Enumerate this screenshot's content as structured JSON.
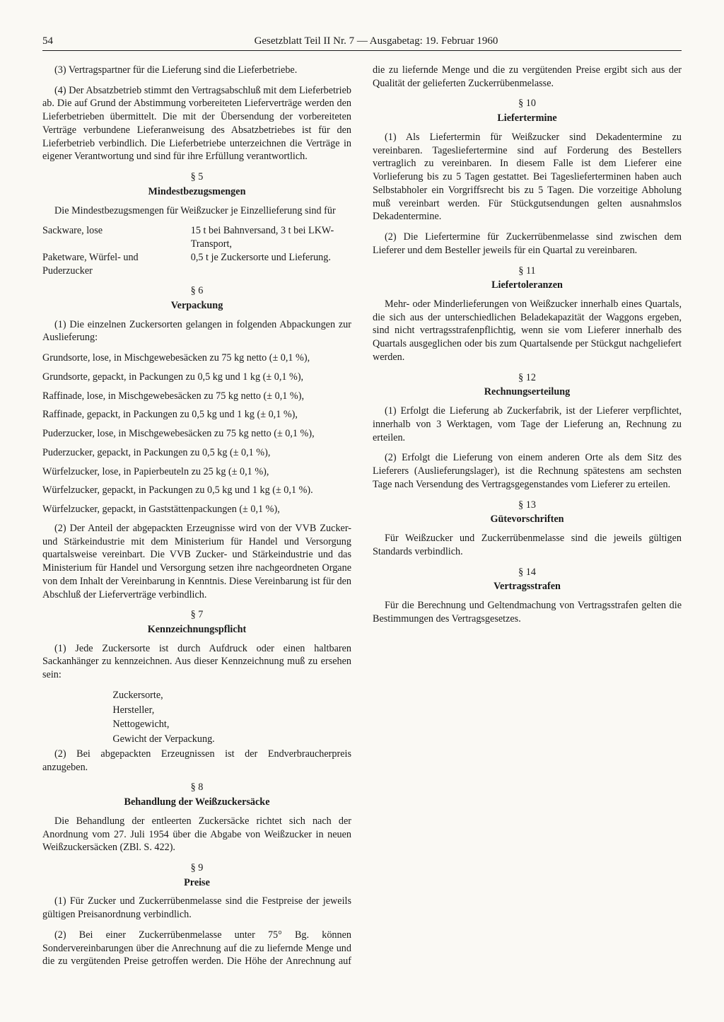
{
  "page_number": "54",
  "header": "Gesetzblatt Teil II Nr. 7 — Ausgabetag: 19. Februar 1960",
  "left": {
    "p3": "(3) Vertragspartner für die Lieferung sind die Lieferbetriebe.",
    "p4": "(4) Der Absatzbetrieb stimmt den Vertragsabschluß mit dem Lieferbetrieb ab. Die auf Grund der Abstimmung vorbereiteten Lieferverträge werden den Lieferbetrieben übermittelt. Die mit der Übersendung der vorbereiteten Verträge verbundene Lieferanweisung des Absatzbetriebes ist für den Lieferbetrieb verbindlich. Die Lieferbetriebe unterzeichnen die Verträge in eigener Verantwortung und sind für ihre Erfüllung verantwortlich.",
    "s5_num": "§ 5",
    "s5_title": "Mindestbezugsmengen",
    "s5_intro": "Die Mindestbezugsmengen für Weißzucker je Einzellieferung sind für",
    "s5_row1_l": "Sackware, lose",
    "s5_row1_r": "15 t bei Bahnversand, 3 t bei LKW-Transport,",
    "s5_row2_l": "Paketware, Würfel- und Puderzucker",
    "s5_row2_r": "0,5 t je Zuckersorte und Lieferung.",
    "s6_num": "§ 6",
    "s6_title": "Verpackung",
    "s6_p1": "(1) Die einzelnen Zuckersorten gelangen in folgenden Abpackungen zur Auslieferung:",
    "s6_li1": "Grundsorte, lose, in Mischgewebesäcken zu 75 kg netto (± 0,1 %),",
    "s6_li2": "Grundsorte, gepackt, in Packungen zu 0,5 kg und 1 kg (± 0,1 %),",
    "s6_li3": "Raffinade, lose, in Mischgewebesäcken zu 75 kg netto (± 0,1 %),",
    "s6_li4": "Raffinade, gepackt, in Packungen zu 0,5 kg und 1 kg (± 0,1 %),",
    "s6_li5": "Puderzucker, lose, in Mischgewebesäcken zu 75 kg netto (± 0,1 %),",
    "s6_li6": "Puderzucker, gepackt, in Packungen zu 0,5 kg (± 0,1 %),",
    "s6_li7": "Würfelzucker, lose, in Papierbeuteln zu 25 kg (± 0,1 %),",
    "s6_li8": "Würfelzucker, gepackt, in Packungen zu 0,5 kg und 1 kg (± 0,1 %).",
    "s6_li9": "Würfelzucker, gepackt, in Gaststättenpackungen (± 0,1 %),",
    "s6_p2": "(2) Der Anteil der abgepackten Erzeugnisse wird von der VVB Zucker- und Stärkeindustrie mit dem Ministerium für Handel und Versorgung quartalsweise vereinbart. Die VVB Zucker- und Stärkeindustrie und das Ministerium für Handel und Versorgung setzen ihre nachgeordneten Organe von dem Inhalt der Vereinbarung in Kenntnis. Diese Vereinbarung ist für den Abschluß der Lieferverträge verbindlich.",
    "s7_num": "§ 7",
    "s7_title": "Kennzeichnungspflicht",
    "s7_p1": "(1) Jede Zuckersorte ist durch Aufdruck oder einen haltbaren Sackanhänger zu kennzeichnen. Aus dieser Kennzeichnung muß zu ersehen sein:",
    "s7_sub1": "Zuckersorte,",
    "s7_sub2": "Hersteller,",
    "s7_sub3": "Nettogewicht,",
    "s7_sub4": "Gewicht der Verpackung."
  },
  "right": {
    "s7_p2": "(2) Bei abgepackten Erzeugnissen ist der Endverbraucherpreis anzugeben.",
    "s8_num": "§ 8",
    "s8_title": "Behandlung der Weißzuckersäcke",
    "s8_p": "Die Behandlung der entleerten Zuckersäcke richtet sich nach der Anordnung vom 27. Juli 1954 über die Abgabe von Weißzucker in neuen Weißzuckersäcken (ZBl. S. 422).",
    "s9_num": "§ 9",
    "s9_title": "Preise",
    "s9_p1": "(1) Für Zucker und Zuckerrübenmelasse sind die Festpreise der jeweils gültigen Preisanordnung verbindlich.",
    "s9_p2": "(2) Bei einer Zuckerrübenmelasse unter 75° Bg. können Sondervereinbarungen über die Anrechnung auf die zu liefernde Menge und die zu vergütenden Preise getroffen werden. Die Höhe der Anrechnung auf die zu liefernde Menge und die zu vergütenden Preise ergibt sich aus der Qualität der gelieferten Zuckerrübenmelasse.",
    "s10_num": "§ 10",
    "s10_title": "Liefertermine",
    "s10_p1": "(1) Als Liefertermin für Weißzucker sind Dekadentermine zu vereinbaren. Tagesliefertermine sind auf Forderung des Bestellers vertraglich zu vereinbaren. In diesem Falle ist dem Lieferer eine Vorlieferung bis zu 5 Tagen gestattet. Bei Tageslieferterminen haben auch Selbstabholer ein Vorgriffsrecht bis zu 5 Tagen. Die vorzeitige Abholung muß vereinbart werden. Für Stückgutsendungen gelten ausnahmslos Dekadentermine.",
    "s10_p2": "(2) Die Liefertermine für Zuckerrübenmelasse sind zwischen dem Lieferer und dem Besteller jeweils für ein Quartal zu vereinbaren.",
    "s11_num": "§ 11",
    "s11_title": "Liefertoleranzen",
    "s11_p": "Mehr- oder Minderlieferungen von Weißzucker innerhalb eines Quartals, die sich aus der unterschiedlichen Beladekapazität der Waggons ergeben, sind nicht vertragsstrafenpflichtig, wenn sie vom Lieferer innerhalb des Quartals ausgeglichen oder bis zum Quartalsende per Stückgut nachgeliefert werden.",
    "s12_num": "§ 12",
    "s12_title": "Rechnungserteilung",
    "s12_p1": "(1) Erfolgt die Lieferung ab Zuckerfabrik, ist der Lieferer verpflichtet, innerhalb von 3 Werktagen, vom Tage der Lieferung an, Rechnung zu erteilen.",
    "s12_p2": "(2) Erfolgt die Lieferung von einem anderen Orte als dem Sitz des Lieferers (Auslieferungslager), ist die Rechnung spätestens am sechsten Tage nach Versendung des Vertragsgegenstandes vom Lieferer zu erteilen.",
    "s13_num": "§ 13",
    "s13_title": "Gütevorschriften",
    "s13_p": "Für Weißzucker und Zuckerrübenmelasse sind die jeweils gültigen Standards verbindlich.",
    "s14_num": "§ 14",
    "s14_title": "Vertragsstrafen",
    "s14_p": "Für die Berechnung und Geltendmachung von Vertragsstrafen gelten die Bestimmungen des Vertragsgesetzes."
  }
}
